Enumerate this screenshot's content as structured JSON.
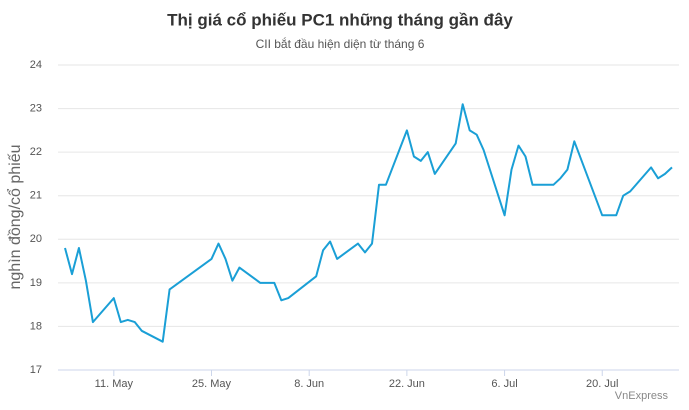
{
  "chart_data": {
    "type": "line",
    "title": "Thị giá cổ phiếu PC1 những tháng gần đây",
    "subtitle": "CII bắt đầu hiện diện từ tháng 6",
    "y_label": "nghìn đồng/cổ phiếu",
    "credit": "VnExpress",
    "x": [
      4,
      5,
      6,
      7,
      8,
      11,
      12,
      13,
      14,
      15,
      18,
      19,
      25,
      26,
      27,
      28,
      29,
      32,
      34,
      35,
      36,
      40,
      41,
      42,
      43,
      46,
      47,
      48,
      49,
      50,
      53,
      54,
      55,
      56,
      57,
      60,
      61,
      62,
      63,
      64,
      67,
      68,
      69,
      70,
      71,
      74,
      75,
      76,
      77,
      81,
      83,
      84,
      85,
      88,
      89,
      90,
      91
    ],
    "series": [
      {
        "name": "PC1",
        "color": "#1a9fd6",
        "values": [
          19.8,
          19.2,
          19.8,
          19.05,
          18.1,
          18.65,
          18.1,
          18.15,
          18.1,
          17.9,
          17.65,
          18.85,
          19.55,
          19.9,
          19.55,
          19.05,
          19.35,
          19.0,
          19.0,
          18.6,
          18.65,
          19.15,
          19.75,
          19.95,
          19.55,
          19.9,
          19.7,
          19.9,
          21.25,
          21.25,
          22.5,
          21.9,
          21.8,
          22.0,
          21.5,
          22.2,
          23.1,
          22.5,
          22.4,
          22.05,
          20.55,
          21.6,
          22.15,
          21.9,
          21.25,
          21.25,
          21.4,
          21.6,
          22.25,
          20.55,
          20.55,
          21.0,
          21.1,
          21.65,
          21.4,
          21.5,
          21.65
        ]
      }
    ],
    "xlim": [
      3,
      92
    ],
    "xticks": [
      {
        "value": 11,
        "label": "11. May"
      },
      {
        "value": 25,
        "label": "25. May"
      },
      {
        "value": 39,
        "label": "8. Jun"
      },
      {
        "value": 53,
        "label": "22. Jun"
      },
      {
        "value": 67,
        "label": "6. Jul"
      },
      {
        "value": 81,
        "label": "20. Jul"
      }
    ],
    "ylim": [
      17,
      24
    ],
    "yticks": [
      17,
      18,
      19,
      20,
      21,
      22,
      23,
      24
    ],
    "grid": true
  }
}
